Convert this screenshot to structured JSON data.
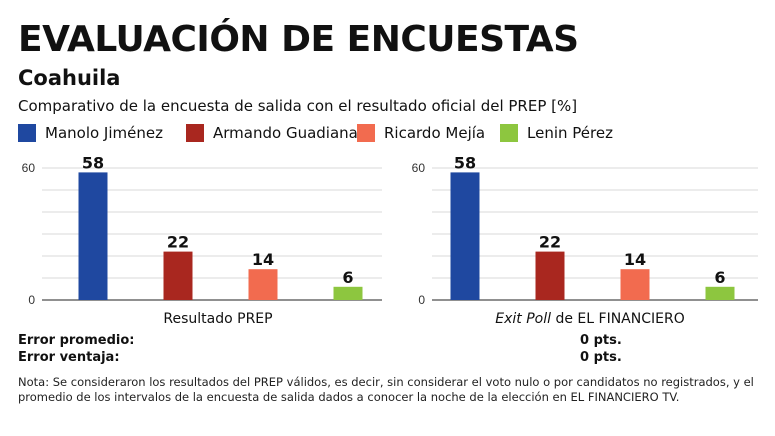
{
  "header": {
    "title": "EVALUACIÓN DE ENCUESTAS",
    "subtitle": "Coahuila",
    "description": "Comparativo de la encuesta de salida con el resultado oficial del PREP [%]"
  },
  "legend": [
    {
      "name": "Manolo Jiménez",
      "color": "#1f48a0"
    },
    {
      "name": "Armando Guadiana",
      "color": "#a9271f"
    },
    {
      "name": "Ricardo Mejía",
      "color": "#f26b4f"
    },
    {
      "name": "Lenin Pérez",
      "color": "#8dc63f"
    }
  ],
  "chart_data": [
    {
      "type": "bar",
      "categories": [
        "Manolo Jiménez",
        "Armando Guadiana",
        "Ricardo Mejía",
        "Lenin Pérez"
      ],
      "values": [
        58,
        22,
        14,
        6
      ],
      "colors": [
        "#1f48a0",
        "#a9271f",
        "#f26b4f",
        "#8dc63f"
      ],
      "xlabel": "Resultado PREP",
      "xlabel_italic": "",
      "yticks": [
        0,
        60
      ],
      "ylim": [
        0,
        60
      ],
      "grid": true
    },
    {
      "type": "bar",
      "categories": [
        "Manolo Jiménez",
        "Armando Guadiana",
        "Ricardo Mejía",
        "Lenin Pérez"
      ],
      "values": [
        58,
        22,
        14,
        6
      ],
      "colors": [
        "#1f48a0",
        "#a9271f",
        "#f26b4f",
        "#8dc63f"
      ],
      "xlabel": " de EL FINANCIERO",
      "xlabel_italic": "Exit Poll",
      "yticks": [
        0,
        60
      ],
      "ylim": [
        0,
        60
      ],
      "grid": true
    }
  ],
  "errors": {
    "promedio_label": "Error promedio:",
    "promedio_value": "0 pts.",
    "ventaja_label": "Error ventaja:",
    "ventaja_value": "0 pts."
  },
  "note": "Nota: Se consideraron los resultados del PREP válidos, es decir, sin considerar el voto nulo o por candidatos no registrados, y el promedio de los intervalos de la encuesta de salida dados a conocer la noche de la elección en EL FINANCIERO TV."
}
